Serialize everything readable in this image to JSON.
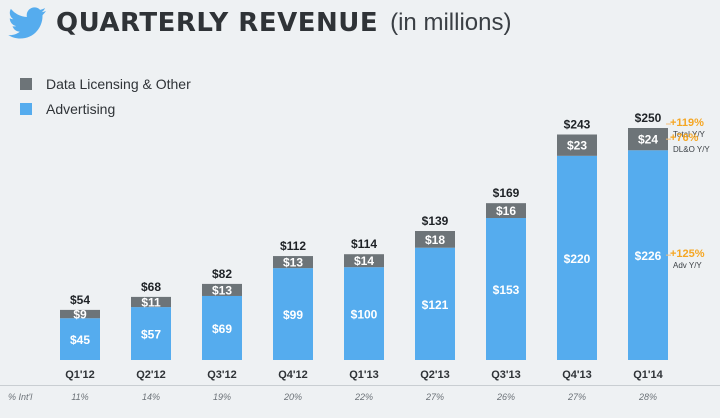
{
  "header": {
    "title": "QUARTERLY REVENUE",
    "subtitle": "(in millions)"
  },
  "colors": {
    "advertising": "#55acee",
    "data_licensing": "#6d7478",
    "annotation": "#f5a623",
    "text_dark": "#2f3337"
  },
  "chart_data": {
    "type": "bar",
    "stacked": true,
    "title": "QUARTERLY REVENUE (in millions)",
    "categories": [
      "Q1'12",
      "Q2'12",
      "Q3'12",
      "Q4'12",
      "Q1'13",
      "Q2'13",
      "Q3'13",
      "Q4'13",
      "Q1'14"
    ],
    "series": [
      {
        "name": "Advertising",
        "values": [
          45,
          57,
          69,
          99,
          100,
          121,
          153,
          220,
          226
        ],
        "labels": [
          "$45",
          "$57",
          "$69",
          "$99",
          "$100",
          "$121",
          "$153",
          "$220",
          "$226"
        ]
      },
      {
        "name": "Data Licensing & Other",
        "values": [
          9,
          11,
          13,
          13,
          14,
          18,
          16,
          23,
          24
        ],
        "labels": [
          "$9",
          "$11",
          "$13",
          "$13",
          "$14",
          "$18",
          "$16",
          "$23",
          "$24"
        ]
      }
    ],
    "totals": [
      54,
      68,
      82,
      112,
      114,
      139,
      169,
      243,
      250
    ],
    "total_labels": [
      "$54",
      "$68",
      "$82",
      "$112",
      "$114",
      "$139",
      "$169",
      "$243",
      "$250"
    ],
    "ylim": [
      0,
      250
    ],
    "grid": false,
    "legend": "top-left",
    "annotations": [
      {
        "value": "+119%",
        "label": "Total Y/Y"
      },
      {
        "value": "+76%",
        "label": "DL&O Y/Y"
      },
      {
        "value": "+125%",
        "label": "Adv Y/Y"
      }
    ],
    "intl": {
      "label": "% Int'l",
      "values": [
        "11%",
        "14%",
        "19%",
        "20%",
        "22%",
        "27%",
        "26%",
        "27%",
        "28%"
      ]
    }
  }
}
